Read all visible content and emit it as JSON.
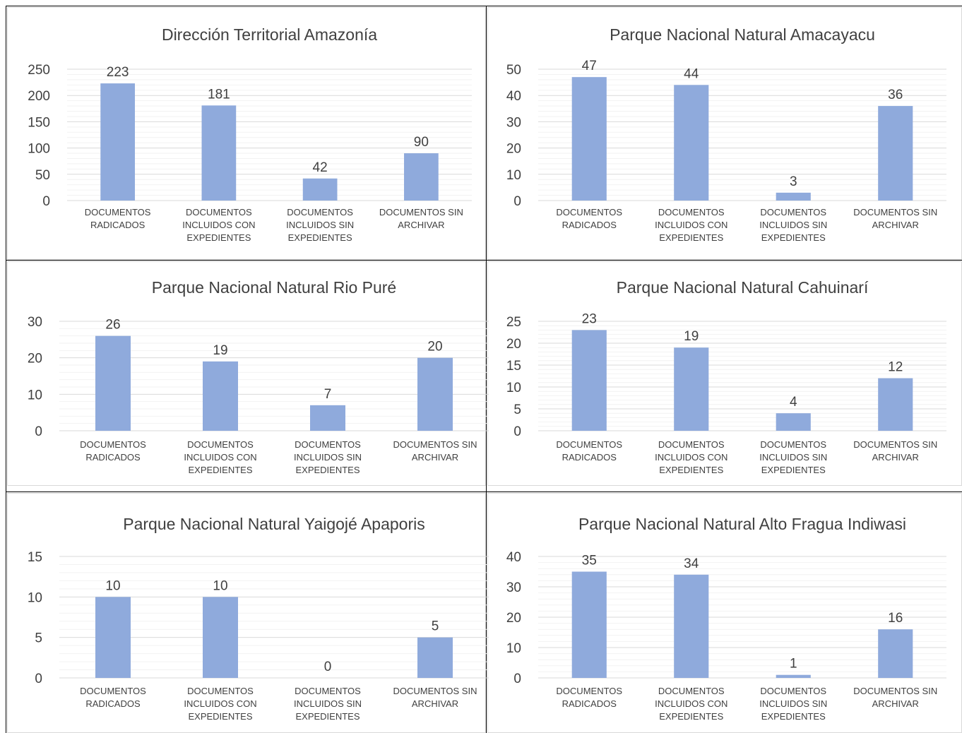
{
  "colors": {
    "bar": "#8faadc",
    "major_grid": "#d9d9d9",
    "minor_grid": "#f2f2f2",
    "text": "#404040",
    "frame": "#d9d9d9",
    "divider": "#000000"
  },
  "chart_data": [
    {
      "type": "bar",
      "title": "Dirección Territorial Amazonía",
      "categories": [
        "DOCUMENTOS RADICADOS",
        "DOCUMENTOS INCLUIDOS CON EXPEDIENTES",
        "DOCUMENTOS INCLUIDOS SIN EXPEDIENTES",
        "DOCUMENTOS SIN ARCHIVAR"
      ],
      "values": [
        223,
        181,
        42,
        90
      ],
      "ylim": [
        0,
        250
      ],
      "yticks": [
        0,
        50,
        100,
        150,
        200,
        250
      ],
      "grid": true,
      "minor_grid": true,
      "data_labels": true
    },
    {
      "type": "bar",
      "title": "Parque Nacional Natural Amacayacu",
      "categories": [
        "DOCUMENTOS RADICADOS",
        "DOCUMENTOS INCLUIDOS CON EXPEDIENTES",
        "DOCUMENTOS INCLUIDOS SIN EXPEDIENTES",
        "DOCUMENTOS SIN ARCHIVAR"
      ],
      "values": [
        47,
        44,
        3,
        36
      ],
      "ylim": [
        0,
        50
      ],
      "yticks": [
        0,
        10,
        20,
        30,
        40,
        50
      ],
      "grid": true,
      "minor_grid": true,
      "data_labels": true
    },
    {
      "type": "bar",
      "title": "Parque Nacional Natural Rio Puré",
      "categories": [
        "DOCUMENTOS RADICADOS",
        "DOCUMENTOS INCLUIDOS CON EXPEDIENTES",
        "DOCUMENTOS INCLUIDOS SIN EXPEDIENTES",
        "DOCUMENTOS SIN ARCHIVAR"
      ],
      "values": [
        26,
        19,
        7,
        20
      ],
      "ylim": [
        0,
        30
      ],
      "yticks": [
        0,
        10,
        20,
        30
      ],
      "grid": true,
      "minor_grid": true,
      "data_labels": true
    },
    {
      "type": "bar",
      "title": "Parque Nacional Natural Cahuinarí",
      "categories": [
        "DOCUMENTOS RADICADOS",
        "DOCUMENTOS INCLUIDOS CON EXPEDIENTES",
        "DOCUMENTOS INCLUIDOS SIN EXPEDIENTES",
        "DOCUMENTOS SIN ARCHIVAR"
      ],
      "values": [
        23,
        19,
        4,
        12
      ],
      "ylim": [
        0,
        25
      ],
      "yticks": [
        0,
        5,
        10,
        15,
        20,
        25
      ],
      "grid": true,
      "minor_grid": true,
      "data_labels": true
    },
    {
      "type": "bar",
      "title": "Parque Nacional Natural Yaigojé Apaporis",
      "categories": [
        "DOCUMENTOS RADICADOS",
        "DOCUMENTOS INCLUIDOS CON EXPEDIENTES",
        "DOCUMENTOS INCLUIDOS SIN EXPEDIENTES",
        "DOCUMENTOS SIN ARCHIVAR"
      ],
      "values": [
        10,
        10,
        0,
        5
      ],
      "ylim": [
        0,
        15
      ],
      "yticks": [
        0,
        5,
        10,
        15
      ],
      "grid": true,
      "minor_grid": true,
      "data_labels": true
    },
    {
      "type": "bar",
      "title": "Parque Nacional Natural Alto Fragua Indiwasi",
      "categories": [
        "DOCUMENTOS RADICADOS",
        "DOCUMENTOS INCLUIDOS CON EXPEDIENTES",
        "DOCUMENTOS INCLUIDOS SIN EXPEDIENTES",
        "DOCUMENTOS SIN ARCHIVAR"
      ],
      "values": [
        35,
        34,
        1,
        16
      ],
      "ylim": [
        0,
        40
      ],
      "yticks": [
        0,
        10,
        20,
        30,
        40
      ],
      "grid": true,
      "minor_grid": true,
      "data_labels": true
    }
  ]
}
